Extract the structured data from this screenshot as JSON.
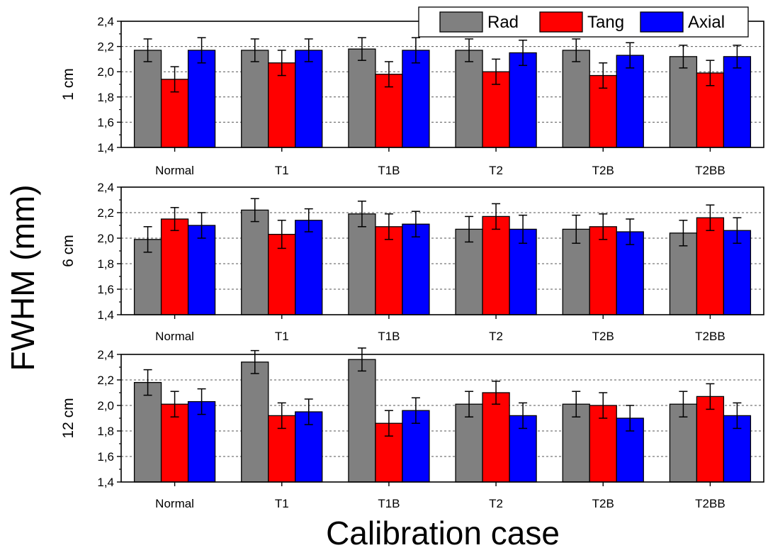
{
  "chart_data": {
    "type": "bar",
    "ylabel": "FWHM (mm)",
    "xlabel": "Calibration case",
    "ylim": [
      1.4,
      2.4
    ],
    "yticks": [
      "1,4",
      "1,6",
      "1,8",
      "2,0",
      "2,2",
      "2,4"
    ],
    "grid": "dashed horizontal",
    "legend_position": "top-right",
    "categories": [
      "Normal",
      "T1",
      "T1B",
      "T2",
      "T2B",
      "T2BB"
    ],
    "series_meta": [
      {
        "name": "Rad",
        "color": "#808080"
      },
      {
        "name": "Tang",
        "color": "#ff0000"
      },
      {
        "name": "Axial",
        "color": "#0000ff"
      }
    ],
    "panels": [
      {
        "label": "1 cm",
        "series": [
          {
            "name": "Rad",
            "values": [
              2.17,
              2.17,
              2.18,
              2.17,
              2.17,
              2.12
            ],
            "errors": [
              0.09,
              0.09,
              0.09,
              0.09,
              0.09,
              0.09
            ]
          },
          {
            "name": "Tang",
            "values": [
              1.94,
              2.07,
              1.98,
              2.0,
              1.97,
              1.99
            ],
            "errors": [
              0.1,
              0.1,
              0.1,
              0.1,
              0.1,
              0.1
            ]
          },
          {
            "name": "Axial",
            "values": [
              2.17,
              2.17,
              2.17,
              2.15,
              2.13,
              2.12
            ],
            "errors": [
              0.1,
              0.09,
              0.1,
              0.1,
              0.1,
              0.09
            ]
          }
        ]
      },
      {
        "label": "6 cm",
        "series": [
          {
            "name": "Rad",
            "values": [
              1.99,
              2.22,
              2.19,
              2.07,
              2.07,
              2.04
            ],
            "errors": [
              0.1,
              0.09,
              0.1,
              0.1,
              0.11,
              0.1
            ]
          },
          {
            "name": "Tang",
            "values": [
              2.15,
              2.03,
              2.09,
              2.17,
              2.09,
              2.16
            ],
            "errors": [
              0.09,
              0.11,
              0.1,
              0.1,
              0.1,
              0.1
            ]
          },
          {
            "name": "Axial",
            "values": [
              2.1,
              2.14,
              2.11,
              2.07,
              2.05,
              2.06
            ],
            "errors": [
              0.1,
              0.09,
              0.1,
              0.11,
              0.1,
              0.1
            ]
          }
        ]
      },
      {
        "label": "12 cm",
        "series": [
          {
            "name": "Rad",
            "values": [
              2.18,
              2.34,
              2.36,
              2.01,
              2.01,
              2.01
            ],
            "errors": [
              0.1,
              0.09,
              0.09,
              0.1,
              0.1,
              0.1
            ]
          },
          {
            "name": "Tang",
            "values": [
              2.01,
              1.92,
              1.86,
              2.1,
              2.0,
              2.07
            ],
            "errors": [
              0.1,
              0.1,
              0.1,
              0.09,
              0.1,
              0.1
            ]
          },
          {
            "name": "Axial",
            "values": [
              2.03,
              1.95,
              1.96,
              1.92,
              1.9,
              1.92
            ],
            "errors": [
              0.1,
              0.1,
              0.1,
              0.1,
              0.1,
              0.1
            ]
          }
        ]
      }
    ]
  }
}
